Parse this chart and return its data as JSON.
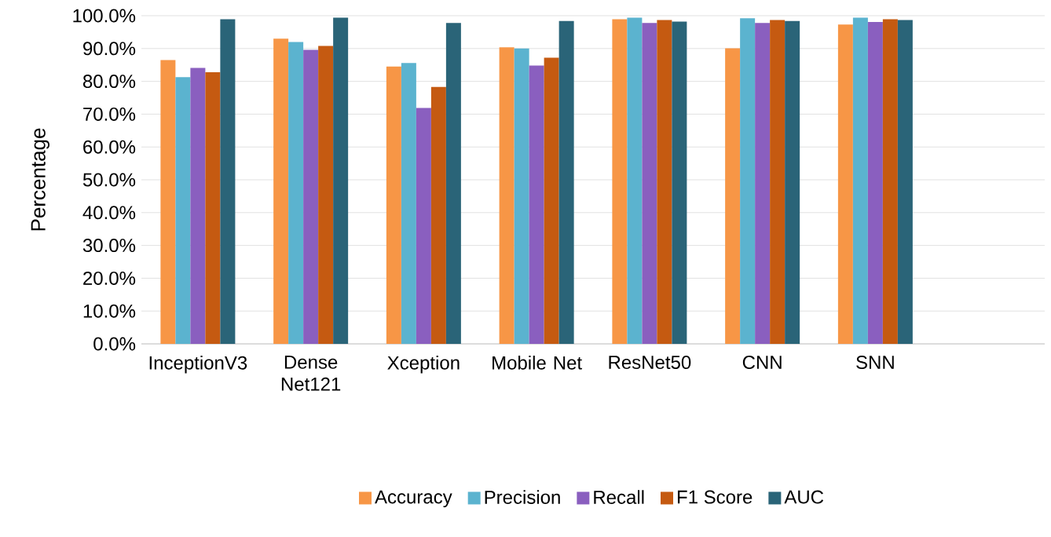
{
  "chart_data": {
    "type": "bar",
    "ylabel": "Percentage",
    "categories": [
      "InceptionV3",
      "Dense Net121",
      "Xception",
      "Mobile Net",
      "ResNet50",
      "CNN",
      "SNN",
      null
    ],
    "series": [
      {
        "name": "Accuracy",
        "color": "#f79646",
        "values": [
          86.5,
          93.0,
          84.5,
          90.4,
          98.9,
          90.1,
          97.3,
          null
        ]
      },
      {
        "name": "Precision",
        "color": "#5bb3cf",
        "values": [
          81.3,
          92.0,
          85.6,
          90.0,
          99.4,
          99.2,
          99.4,
          null
        ]
      },
      {
        "name": "Recall",
        "color": "#8a5fbf",
        "values": [
          84.1,
          89.6,
          71.9,
          84.8,
          97.8,
          97.8,
          98.1,
          null
        ]
      },
      {
        "name": "F1 Score",
        "color": "#c55a11",
        "values": [
          82.8,
          90.8,
          78.3,
          87.2,
          98.7,
          98.7,
          98.9,
          null
        ]
      },
      {
        "name": "AUC",
        "color": "#2a6478",
        "values": [
          98.9,
          99.4,
          97.8,
          98.4,
          98.2,
          98.4,
          98.7,
          null
        ]
      }
    ],
    "ylim": [
      0,
      100
    ],
    "yticks": [
      {
        "value": 0,
        "label": "0.0%"
      },
      {
        "value": 10,
        "label": "10.0%"
      },
      {
        "value": 20,
        "label": "20.0%"
      },
      {
        "value": 30,
        "label": "30.0%"
      },
      {
        "value": 40,
        "label": "40.0%"
      },
      {
        "value": 50,
        "label": "50.0%"
      },
      {
        "value": 60,
        "label": "60.0%"
      },
      {
        "value": 70,
        "label": "70.0%"
      },
      {
        "value": 80,
        "label": "80.0%"
      },
      {
        "value": 90,
        "label": "90.0%"
      },
      {
        "value": 100,
        "label": "100.0%"
      }
    ],
    "grid": "y",
    "legend": "bottom"
  }
}
